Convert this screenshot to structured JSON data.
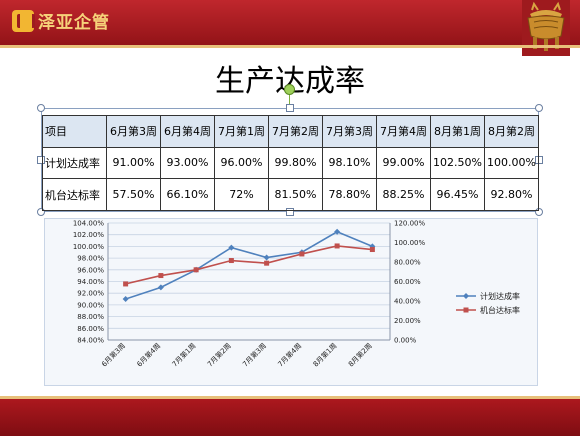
{
  "header": {
    "brand_name": "泽亚企管",
    "logo_icon": "brand-logo-icon",
    "emblem_icon": "bronze-ding-icon"
  },
  "slide": {
    "title": "生产达成率"
  },
  "table": {
    "header_label": "项目",
    "columns": [
      "6月第3周",
      "6月第4周",
      "7月第1周",
      "7月第2周",
      "7月第3周",
      "7月第4周",
      "8月第1周",
      "8月第2周"
    ],
    "rows": [
      {
        "label": "计划达成率",
        "values": [
          "91.00%",
          "93.00%",
          "96.00%",
          "99.80%",
          "98.10%",
          "99.00%",
          "102.50%",
          "100.00%"
        ]
      },
      {
        "label": "机台达标率",
        "values": [
          "57.50%",
          "66.10%",
          "72%",
          "81.50%",
          "78.80%",
          "88.25%",
          "96.45%",
          "92.80%"
        ]
      }
    ]
  },
  "chart_data": {
    "type": "line",
    "categories": [
      "6月第3周",
      "6月第4周",
      "7月第1周",
      "7月第2周",
      "7月第3周",
      "7月第4周",
      "8月第1周",
      "8月第2周"
    ],
    "series": [
      {
        "name": "计划达成率",
        "axis": "left",
        "color": "#4f81bd",
        "marker": "diamond",
        "values": [
          91.0,
          93.0,
          96.0,
          99.8,
          98.1,
          99.0,
          102.5,
          100.0
        ]
      },
      {
        "name": "机台达标率",
        "axis": "right",
        "color": "#c0504d",
        "marker": "square",
        "values": [
          57.5,
          66.1,
          72.0,
          81.5,
          78.8,
          88.25,
          96.45,
          92.8
        ]
      }
    ],
    "y_left": {
      "min": 84,
      "max": 104,
      "step": 2,
      "tick_labels": [
        "104.00%",
        "102.00%",
        "100.00%",
        "98.00%",
        "96.00%",
        "94.00%",
        "92.00%",
        "90.00%",
        "88.00%",
        "86.00%",
        "84.00%"
      ]
    },
    "y_right": {
      "min": 0,
      "max": 120,
      "step": 20,
      "tick_labels": [
        "120.00%",
        "100.00%",
        "80.00%",
        "60.00%",
        "40.00%",
        "20.00%",
        "0.00%"
      ]
    },
    "grid": true,
    "legend_position": "right"
  }
}
